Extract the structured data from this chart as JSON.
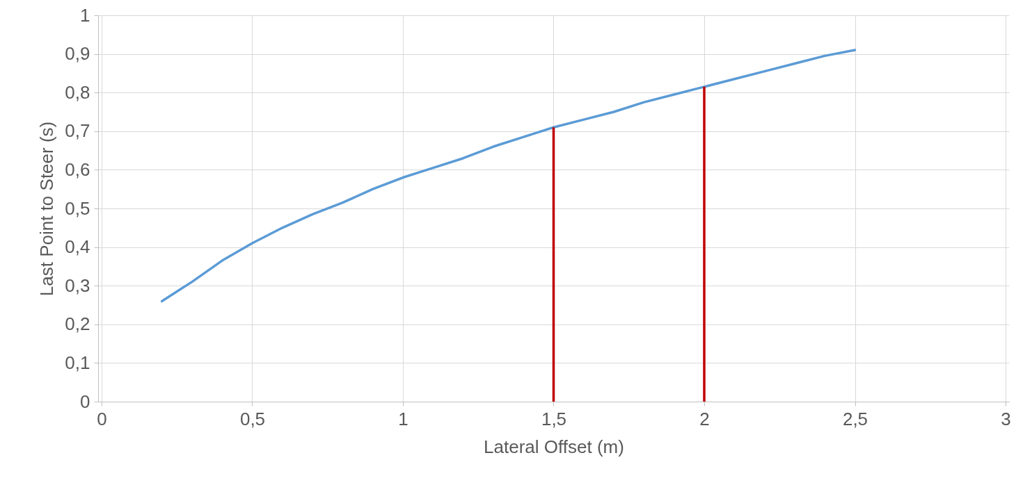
{
  "chart_data": {
    "type": "line",
    "xlabel": "Lateral Offset (m)",
    "ylabel": "Last Point to Steer (s)",
    "xlim": [
      0,
      3
    ],
    "ylim": [
      0,
      1
    ],
    "xticks": [
      0,
      {
        "value": 0.5,
        "label": "0,5"
      },
      1,
      {
        "value": 1.5,
        "label": "1,5"
      },
      2,
      {
        "value": 2.5,
        "label": "2,5"
      },
      3
    ],
    "yticks": [
      0,
      {
        "value": 0.1,
        "label": "0,1"
      },
      {
        "value": 0.2,
        "label": "0,2"
      },
      {
        "value": 0.3,
        "label": "0,3"
      },
      {
        "value": 0.4,
        "label": "0,4"
      },
      {
        "value": 0.5,
        "label": "0,5"
      },
      {
        "value": 0.6,
        "label": "0,6"
      },
      {
        "value": 0.7,
        "label": "0,7"
      },
      {
        "value": 0.8,
        "label": "0,8"
      },
      {
        "value": 0.9,
        "label": "0,9"
      },
      1
    ],
    "grid": true,
    "marker": "none",
    "line_style": "solid",
    "series": [
      {
        "color": "#5b9bd5",
        "x": [
          0.2,
          0.3,
          0.4,
          0.5,
          0.6,
          0.7,
          0.8,
          0.9,
          1,
          1.1,
          1.2,
          1.3,
          1.4,
          1.5,
          1.6,
          1.7,
          1.8,
          1.9,
          2,
          2.1,
          2.2,
          2.3,
          2.4,
          2.5
        ],
        "values": [
          0.26,
          0.31,
          0.365,
          0.41,
          0.45,
          0.485,
          0.515,
          0.55,
          0.58,
          0.605,
          0.63,
          0.66,
          0.685,
          0.71,
          0.73,
          0.75,
          0.775,
          0.795,
          0.815,
          0.835,
          0.855,
          0.875,
          0.895,
          0.91
        ]
      },
      {
        "type": "bar",
        "color": "#c00000",
        "x": [
          1.5,
          2
        ],
        "values": [
          0.71,
          0.815
        ]
      }
    ]
  }
}
